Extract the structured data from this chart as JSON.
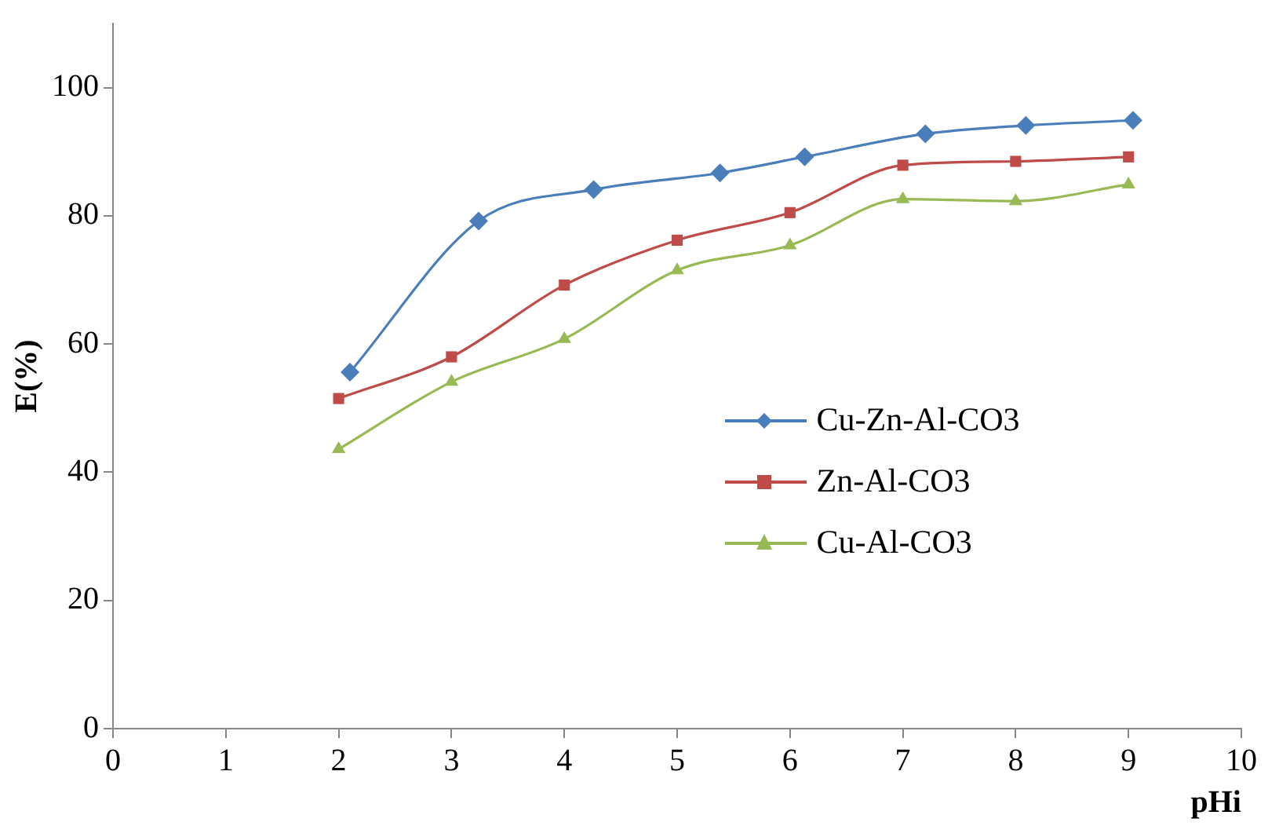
{
  "chart_data": {
    "type": "line",
    "xlabel": "pHi",
    "ylabel": "E(%)",
    "xlim": [
      0,
      10
    ],
    "xticks": [
      0,
      1,
      2,
      3,
      4,
      5,
      6,
      7,
      8,
      9,
      10
    ],
    "ylim": [
      0,
      110
    ],
    "yticks": [
      0,
      20,
      40,
      60,
      80,
      100
    ],
    "grid": false,
    "legend": "right",
    "series": [
      {
        "name": "Cu-Zn-Al-CO3",
        "color": "#4a7ebb",
        "marker": "diamond",
        "x": [
          2.1,
          3.24,
          4.26,
          5.38,
          6.13,
          7.2,
          8.09,
          9.04
        ],
        "values": [
          55.6,
          79.2,
          84.1,
          86.7,
          89.2,
          92.8,
          94.1,
          94.9
        ]
      },
      {
        "name": "Zn-Al-CO3",
        "color": "#be4b48",
        "marker": "square",
        "x": [
          2,
          3,
          4,
          5,
          6,
          7,
          8,
          9
        ],
        "values": [
          51.5,
          58,
          69.2,
          76.2,
          80.5,
          87.9,
          88.5,
          89.2
        ]
      },
      {
        "name": "Cu-Al-CO3",
        "color": "#98b954",
        "marker": "triangle",
        "x": [
          2,
          3,
          4,
          5,
          6,
          7,
          8,
          9
        ],
        "values": [
          43.6,
          54.1,
          60.8,
          71.5,
          75.4,
          82.6,
          82.3,
          84.9
        ]
      }
    ]
  }
}
